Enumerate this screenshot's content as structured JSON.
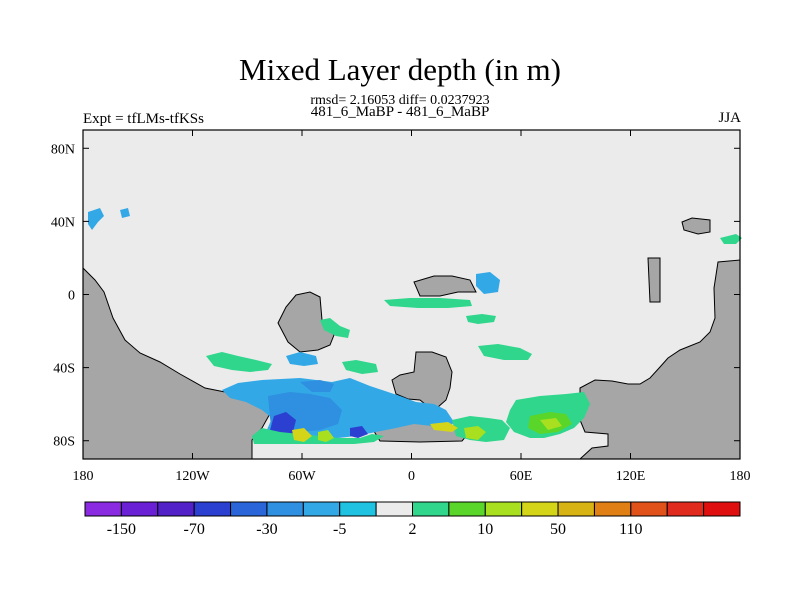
{
  "chart_data": {
    "type": "heatmap",
    "title": "Mixed Layer depth (in m)",
    "stats_line": "rmsd= 2.16053 diff= 0.0237923",
    "subtitle": "481_6_MaBP - 481_6_MaBP",
    "left_label": "Expt = tfLMs-tfKSs",
    "right_label": "JJA",
    "xlim": [
      -180,
      180
    ],
    "ylim": [
      -90,
      90
    ],
    "x_ticks": [
      {
        "value": -180,
        "label": "180"
      },
      {
        "value": -120,
        "label": "120W"
      },
      {
        "value": -60,
        "label": "60W"
      },
      {
        "value": 0,
        "label": "0"
      },
      {
        "value": 60,
        "label": "60E"
      },
      {
        "value": 120,
        "label": "120E"
      },
      {
        "value": 180,
        "label": "180"
      }
    ],
    "y_ticks": [
      {
        "value": 80,
        "label": "80N"
      },
      {
        "value": 40,
        "label": "40N"
      },
      {
        "value": 0,
        "label": "0"
      },
      {
        "value": -40,
        "label": "40S"
      },
      {
        "value": -80,
        "label": "80S"
      }
    ],
    "colorbar": {
      "colors": [
        "#8a2be2",
        "#6a21d6",
        "#5222c8",
        "#2b3fd0",
        "#2a66d9",
        "#2f8fe0",
        "#33a8e6",
        "#1fc2e0",
        "#ebebeb",
        "#2fd68c",
        "#5ad62a",
        "#a8e020",
        "#d4d419",
        "#d7b414",
        "#e07f14",
        "#e0521a",
        "#e02a1e",
        "#e00f0f"
      ],
      "labels": [
        "-150",
        "-70",
        "-30",
        "-5",
        "2",
        "10",
        "50",
        "110"
      ]
    },
    "land_color": "#a6a6a6",
    "ocean_zero_color": "#ebebeb"
  }
}
